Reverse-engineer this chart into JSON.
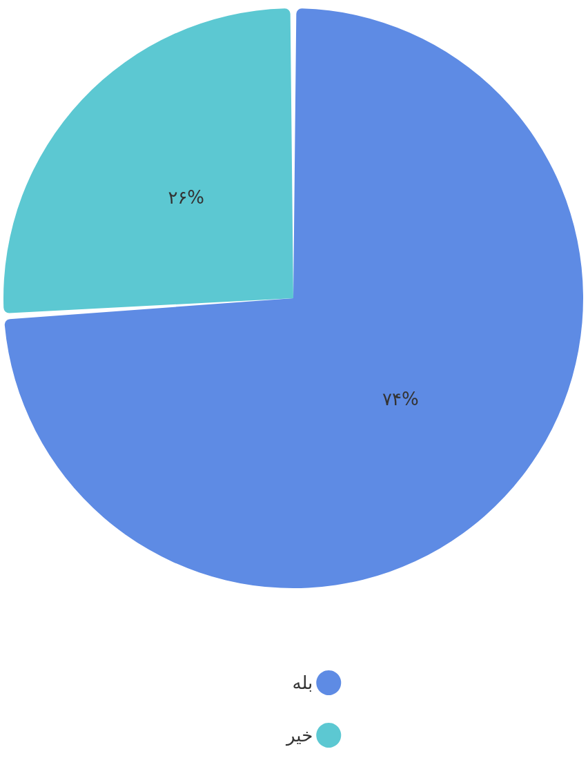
{
  "chart_data": {
    "type": "pie",
    "categories": [
      "بله",
      "خیر"
    ],
    "values": [
      74,
      26
    ],
    "colors": [
      "#5e8be4",
      "#5cc8d2"
    ],
    "value_labels": [
      "۷۴%",
      "۲۶%"
    ],
    "legend": "bottom"
  }
}
